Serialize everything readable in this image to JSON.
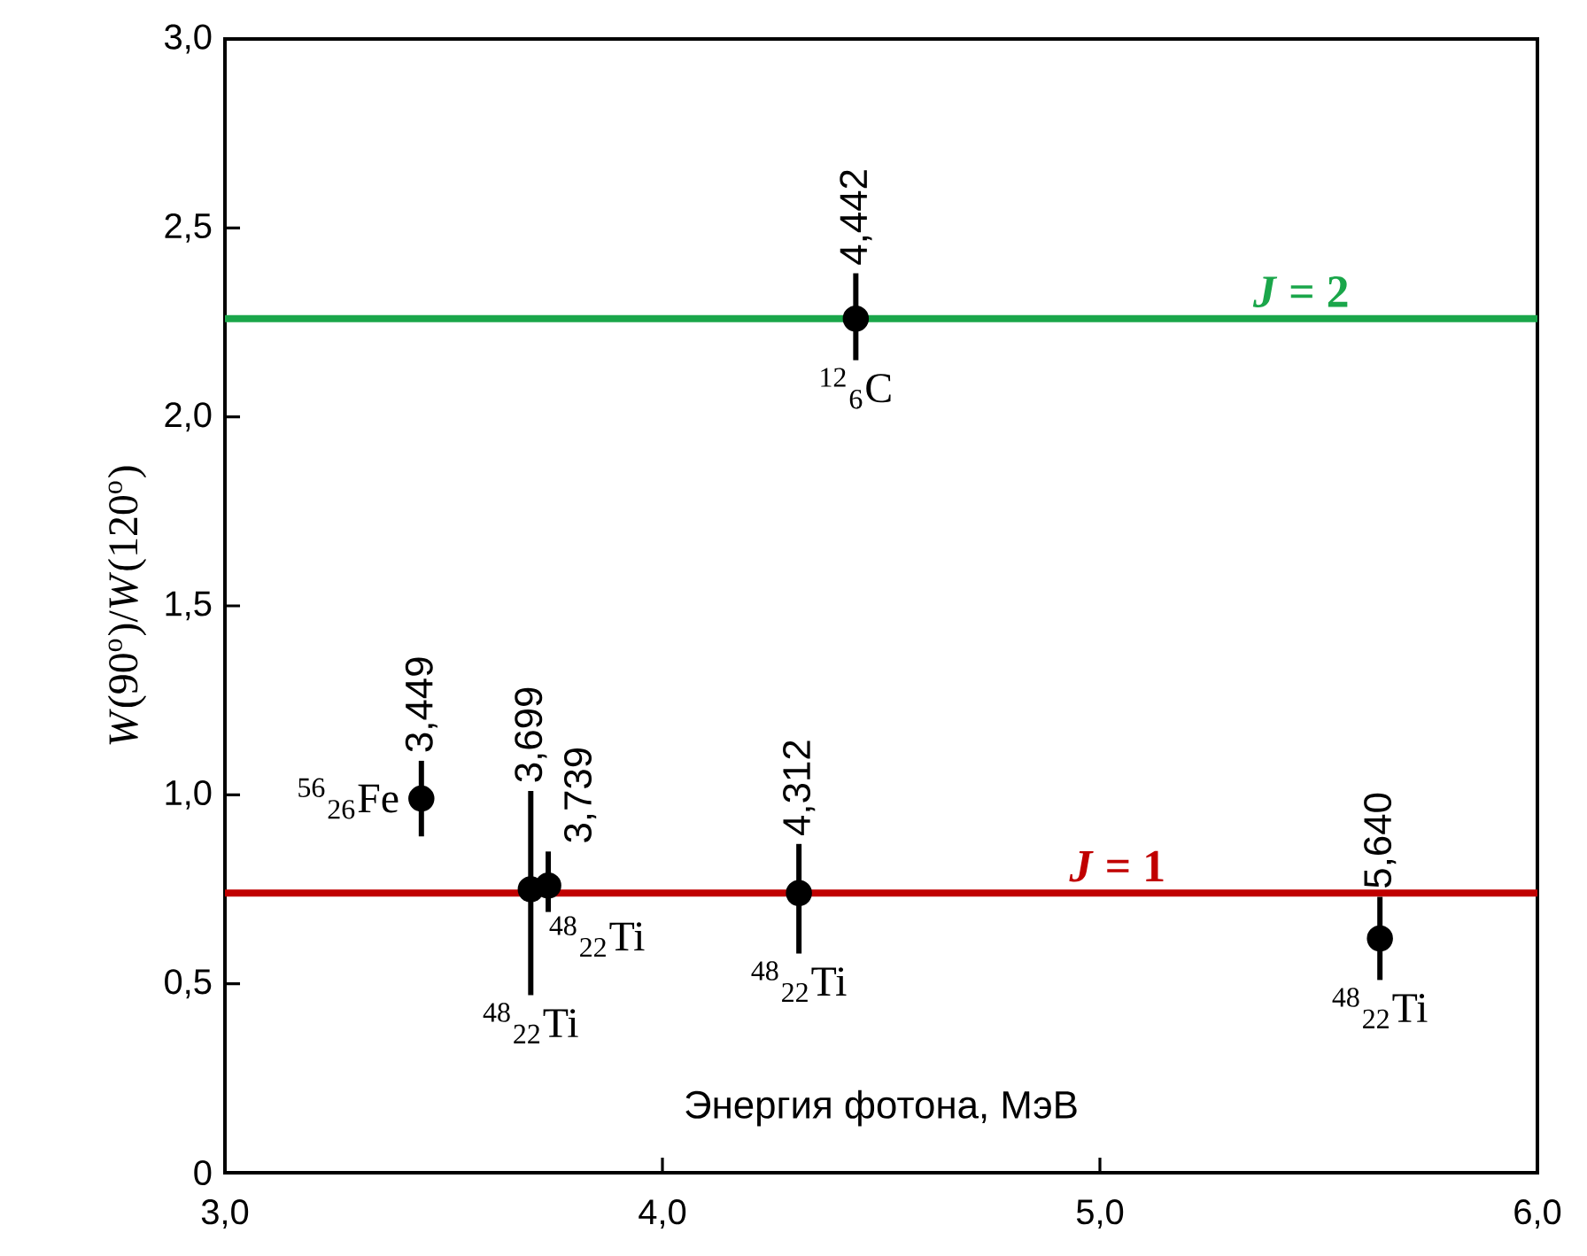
{
  "chart_data": {
    "type": "scatter",
    "xlabel": "Энергия фотона, МэВ",
    "ylabel": "*W*(90$^{o}$)/*W*(120$^{o}$)",
    "xlim": [
      3,
      6
    ],
    "ylim": [
      0,
      3
    ],
    "xticks": [
      {
        "value": 3,
        "label": "3,0"
      },
      {
        "value": 4,
        "label": "4,0"
      },
      {
        "value": 5,
        "label": "5,0"
      },
      {
        "value": 6,
        "label": "6,0"
      }
    ],
    "yticks": [
      {
        "value": 0,
        "label": "0"
      },
      {
        "value": 0.5,
        "label": "0,5"
      },
      {
        "value": 1,
        "label": "1,0"
      },
      {
        "value": 1.5,
        "label": "1,5"
      },
      {
        "value": 2,
        "label": "2,0"
      },
      {
        "value": 2.5,
        "label": "2,5"
      },
      {
        "value": 3,
        "label": "3,0"
      }
    ],
    "marker": "circle",
    "series": [
      {
        "color": "#000000",
        "x": [
          3.449,
          3.699,
          3.739,
          4.312,
          4.442,
          5.64
        ],
        "values": [
          0.99,
          0.75,
          0.76,
          0.74,
          2.26,
          0.62
        ],
        "errors": [
          [
            0.89,
            1.09
          ],
          [
            0.47,
            1.01
          ],
          [
            0.69,
            0.85
          ],
          [
            0.58,
            0.87
          ],
          [
            2.15,
            2.38
          ],
          [
            0.51,
            0.73
          ]
        ]
      }
    ],
    "ref_lines": [
      {
        "axis": "y",
        "value": 0.74,
        "label": "*J* = 1",
        "color": "#c00000"
      },
      {
        "axis": "y",
        "value": 2.26,
        "label": "*J* = 2",
        "color": "#1aa64a"
      }
    ],
    "annotations": [
      {
        "text": "3,449",
        "x": 3.449,
        "y": 0.99
      },
      {
        "text": "3,699",
        "x": 3.699,
        "y": 0.75
      },
      {
        "text": "3,739",
        "x": 3.739,
        "y": 0.76
      },
      {
        "text": "4,312",
        "x": 4.312,
        "y": 0.74
      },
      {
        "text": "4,442",
        "x": 4.442,
        "y": 2.26
      },
      {
        "text": "5,640",
        "x": 5.64,
        "y": 0.62
      },
      {
        "text": "$^{56}$$_{26}$Fe",
        "x": 3.449,
        "y": 0.99
      },
      {
        "text": "$^{48}$$_{22}$Ti",
        "x": 3.699,
        "y": 0.75
      },
      {
        "text": "$^{48}$$_{22}$Ti",
        "x": 3.739,
        "y": 0.76
      },
      {
        "text": "$^{48}$$_{22}$Ti",
        "x": 4.312,
        "y": 0.74
      },
      {
        "text": "$^{12}$$_{6}$C",
        "x": 4.442,
        "y": 2.26
      },
      {
        "text": "$^{48}$$_{22}$Ti",
        "x": 5.64,
        "y": 0.62
      }
    ]
  }
}
